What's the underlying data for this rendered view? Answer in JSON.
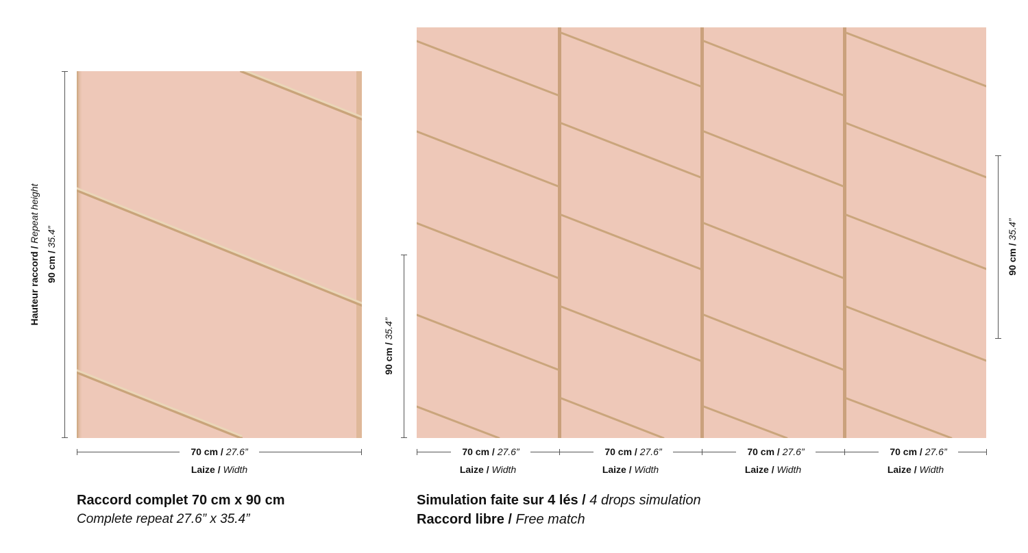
{
  "left_panel": {
    "height_label_fr": "Hauteur raccord",
    "height_label_en": "Repeat height",
    "height_value_cm": "90 cm",
    "height_value_in": "35.4”",
    "width_value_cm": "70 cm",
    "width_value_in": "27.6”",
    "width_label_fr": "Laize",
    "width_label_en": "Width",
    "caption_fr": "Raccord complet 70 cm x 90 cm",
    "caption_en": "Complete repeat 27.6” x 35.4”"
  },
  "right_panel": {
    "left_height_cm": "90 cm",
    "left_height_in": "35.4”",
    "right_height_cm": "90 cm",
    "right_height_in": "35.4”",
    "drops": [
      {
        "width_cm": "70 cm",
        "width_in": "27.6”",
        "label_fr": "Laize",
        "label_en": "Width"
      },
      {
        "width_cm": "70 cm",
        "width_in": "27.6”",
        "label_fr": "Laize",
        "label_en": "Width"
      },
      {
        "width_cm": "70 cm",
        "width_in": "27.6”",
        "label_fr": "Laize",
        "label_en": "Width"
      },
      {
        "width_cm": "70 cm",
        "width_in": "27.6”",
        "label_fr": "Laize",
        "label_en": "Width"
      }
    ],
    "caption1_fr": "Simulation faite sur 4 lés",
    "caption1_en": "4 drops simulation",
    "caption2_fr": "Raccord libre",
    "caption2_en": "Free match"
  },
  "colors": {
    "background": "#eec8b8",
    "stripe": "#c9a47a",
    "stripe_light": "#e9d3b4",
    "text": "#111111"
  }
}
